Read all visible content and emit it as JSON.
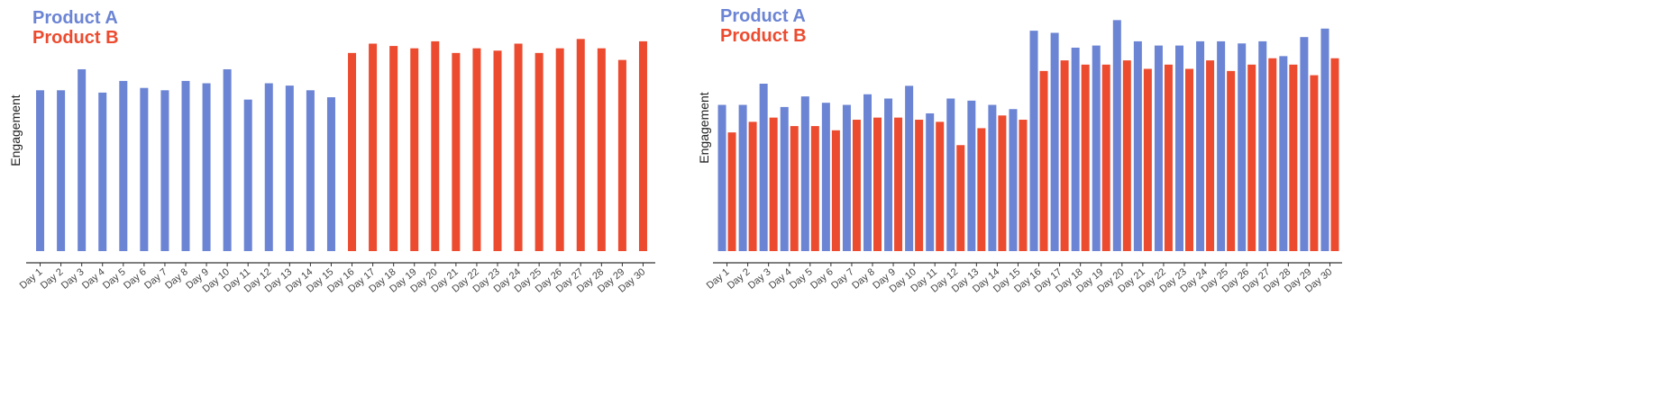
{
  "colors": {
    "product_a": "#6b84d4",
    "product_b": "#ec4b2f"
  },
  "chart_data": [
    {
      "type": "bar",
      "mode": "single-series-per-category",
      "ylabel": "Engagement",
      "categories": [
        "Day 1",
        "Day 2",
        "Day 3",
        "Day 4",
        "Day 5",
        "Day 6",
        "Day 7",
        "Day 8",
        "Day 9",
        "Day 10",
        "Day 11",
        "Day 12",
        "Day 13",
        "Day 14",
        "Day 15",
        "Day 16",
        "Day 17",
        "Day 18",
        "Day 19",
        "Day 20",
        "Day 21",
        "Day 22",
        "Day 23",
        "Day 24",
        "Day 25",
        "Day 26",
        "Day 27",
        "Day 28",
        "Day 29",
        "Day 30"
      ],
      "legend": [
        {
          "name": "Product A",
          "color": "#6b84d4"
        },
        {
          "name": "Product B",
          "color": "#ec4b2f"
        }
      ],
      "series": [
        {
          "name": "Product A",
          "color": "#6b84d4",
          "values": [
            69,
            69,
            78,
            68,
            73,
            70,
            69,
            73,
            72,
            78,
            65,
            72,
            71,
            69,
            66,
            null,
            null,
            null,
            null,
            null,
            null,
            null,
            null,
            null,
            null,
            null,
            null,
            null,
            null,
            null
          ]
        },
        {
          "name": "Product B",
          "color": "#ec4b2f",
          "values": [
            null,
            null,
            null,
            null,
            null,
            null,
            null,
            null,
            null,
            null,
            null,
            null,
            null,
            null,
            null,
            85,
            89,
            88,
            87,
            90,
            85,
            87,
            86,
            89,
            85,
            87,
            91,
            87,
            82,
            90
          ]
        }
      ],
      "ylim": [
        0,
        100
      ],
      "grid": false,
      "legend_position": "top-left"
    },
    {
      "type": "bar",
      "mode": "grouped",
      "ylabel": "Engagement",
      "categories": [
        "Day 1",
        "Day 2",
        "Day 3",
        "Day 4",
        "Day 5",
        "Day 6",
        "Day 7",
        "Day 8",
        "Day 9",
        "Day 10",
        "Day 11",
        "Day 12",
        "Day 13",
        "Day 14",
        "Day 15",
        "Day 16",
        "Day 17",
        "Day 18",
        "Day 19",
        "Day 20",
        "Day 21",
        "Day 22",
        "Day 23",
        "Day 24",
        "Day 25",
        "Day 26",
        "Day 27",
        "Day 28",
        "Day 29",
        "Day 30"
      ],
      "legend": [
        {
          "name": "Product A",
          "color": "#6b84d4"
        },
        {
          "name": "Product B",
          "color": "#ec4b2f"
        }
      ],
      "series": [
        {
          "name": "Product A",
          "color": "#6b84d4",
          "values": [
            69,
            69,
            79,
            68,
            73,
            70,
            69,
            74,
            72,
            78,
            65,
            72,
            71,
            69,
            67,
            104,
            103,
            96,
            97,
            109,
            99,
            97,
            97,
            99,
            99,
            98,
            99,
            92,
            101,
            105
          ]
        },
        {
          "name": "Product B",
          "color": "#ec4b2f",
          "values": [
            56,
            61,
            63,
            59,
            59,
            57,
            62,
            63,
            63,
            62,
            61,
            50,
            58,
            64,
            62,
            85,
            90,
            88,
            88,
            90,
            86,
            88,
            86,
            90,
            85,
            88,
            91,
            88,
            83,
            91
          ]
        }
      ],
      "ylim": [
        0,
        110
      ],
      "grid": false,
      "legend_position": "top-left"
    }
  ]
}
